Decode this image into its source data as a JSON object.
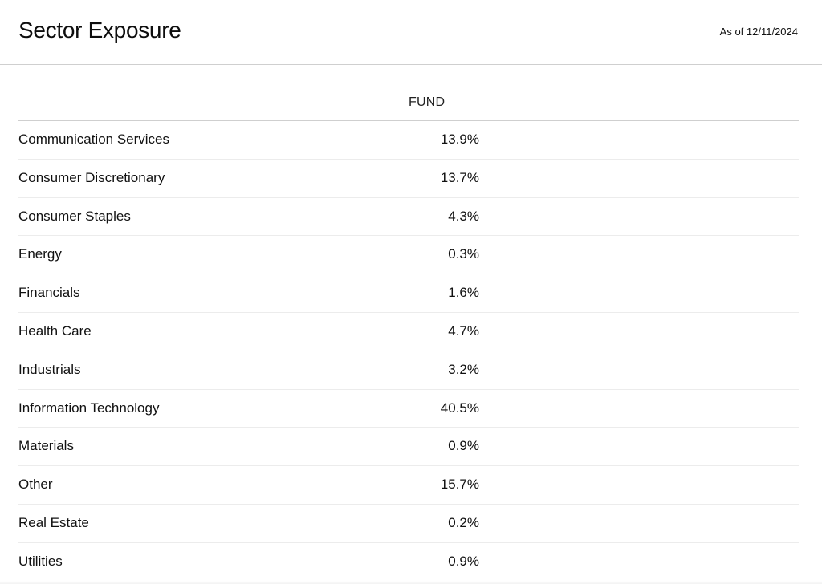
{
  "header": {
    "title": "Sector Exposure",
    "as_of": "As of 12/11/2024"
  },
  "table": {
    "columns": {
      "fund": "FUND"
    },
    "rows": [
      {
        "sector": "Communication Services",
        "fund": "13.9%"
      },
      {
        "sector": "Consumer Discretionary",
        "fund": "13.7%"
      },
      {
        "sector": "Consumer Staples",
        "fund": "4.3%"
      },
      {
        "sector": "Energy",
        "fund": "0.3%"
      },
      {
        "sector": "Financials",
        "fund": "1.6%"
      },
      {
        "sector": "Health Care",
        "fund": "4.7%"
      },
      {
        "sector": "Industrials",
        "fund": "3.2%"
      },
      {
        "sector": "Information Technology",
        "fund": "40.5%"
      },
      {
        "sector": "Materials",
        "fund": "0.9%"
      },
      {
        "sector": "Other",
        "fund": "15.7%"
      },
      {
        "sector": "Real Estate",
        "fund": "0.2%"
      },
      {
        "sector": "Utilities",
        "fund": "0.9%"
      }
    ]
  }
}
